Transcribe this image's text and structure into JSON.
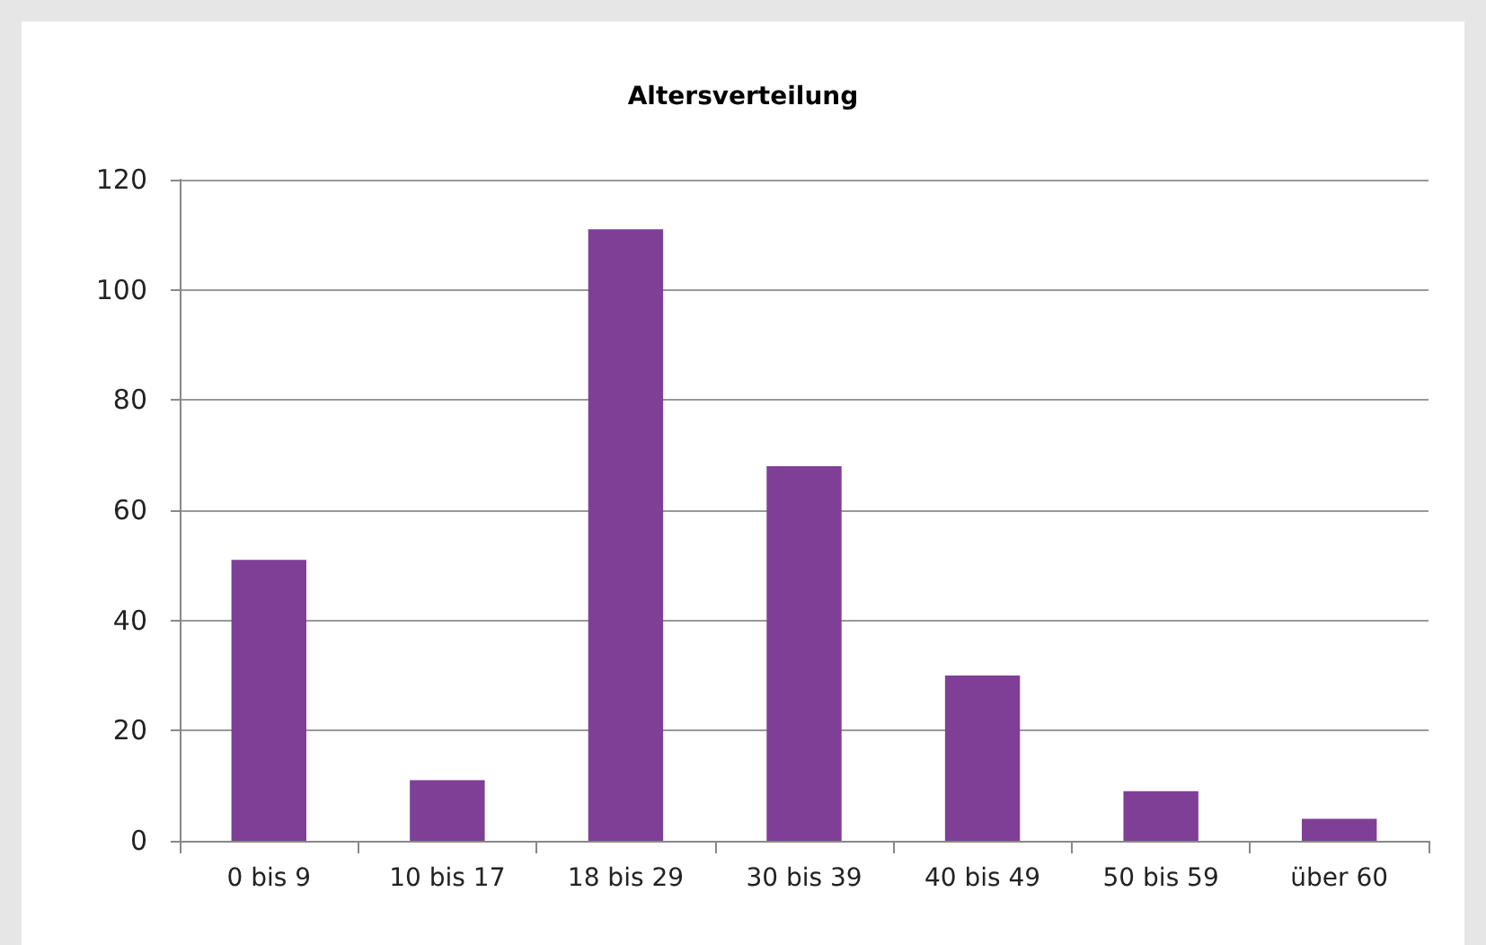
{
  "chart_data": {
    "type": "bar",
    "title": "Altersverteilung",
    "categories": [
      "0 bis 9",
      "10 bis 17",
      "18 bis 29",
      "30 bis 39",
      "40 bis 49",
      "50 bis 59",
      "über 60"
    ],
    "values": [
      51,
      11,
      111,
      68,
      30,
      9,
      4
    ],
    "color": "#7f3f97",
    "ylim": [
      0,
      120
    ],
    "yticks": [
      0,
      20,
      40,
      60,
      80,
      100,
      120
    ],
    "grid": "y"
  }
}
